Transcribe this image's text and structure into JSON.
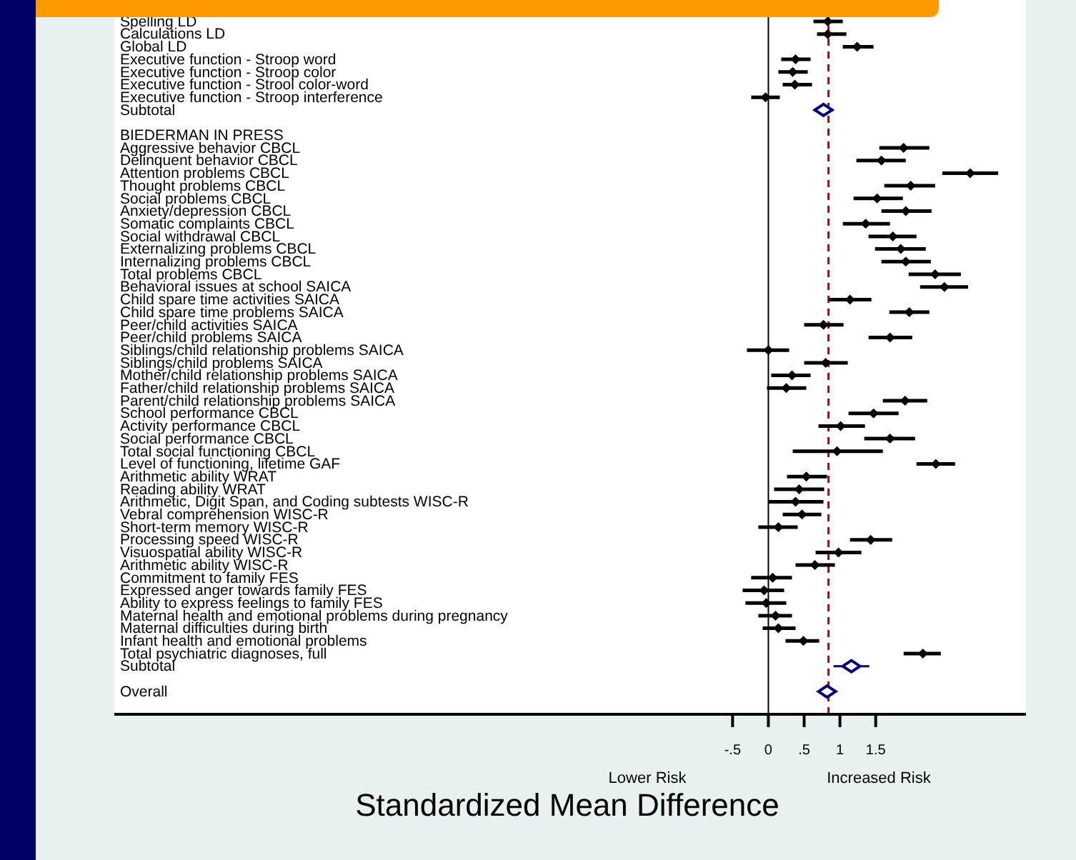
{
  "chart_data": {
    "type": "scatter",
    "orientation": "horizontal",
    "xlabel": "Standardized Mean Difference",
    "categories": [
      "Spelling LD",
      "Calculations LD",
      "Global LD",
      "Executive function - Stroop word",
      "Executive function - Stroop color",
      "Executive function - Strool color-word",
      "Executive function - Stroop interference",
      "Subtotal",
      null,
      "BIEDERMAN IN PRESS",
      "Aggressive behavior CBCL",
      "Delinquent behavior CBCL",
      "Attention problems CBCL",
      "Thought problems CBCL",
      "Social problems CBCL",
      "Anxiety/depression CBCL",
      "Somatic complaints CBCL",
      "Social withdrawal CBCL",
      "Externalizing problems CBCL",
      "Internalizing problems CBCL",
      "Total problems CBCL",
      "Behavioral issues at school SAICA",
      "Child spare time activities SAICA",
      "Child spare time problems SAICA",
      "Peer/child activities SAICA",
      "Peer/child problems SAICA",
      "Siblings/child relationship problems SAICA",
      "Siblings/child problems SAICA",
      "Mother/child relationship problems SAICA",
      "Father/child relationship problems SAICA",
      "Parent/child relationship problems SAICA",
      "School performance CBCL",
      "Activity performance CBCL",
      "Social performance CBCL",
      "Total social functioning CBCL",
      "Level of functioning, lifetime GAF",
      "Arithmetic ability WRAT",
      "Reading ability WRAT",
      "Arithmetic, Digit Span, and Coding subtests WISC-R",
      "Vebral comprehension WISC-R",
      "Short-term memory WISC-R",
      "Processing speed WISC-R",
      "Visuospatial ability WISC-R",
      "Arithmetic ability WISC-R",
      "Commitment to family FES",
      "Expressed anger towards family FES",
      "Ability to express feelings to family FES",
      "Maternal health and emotional problems during pregnancy",
      "Maternal difficulties during birth",
      "Infant health and emotional problems",
      "Total psychiatric diagnoses, full",
      "Subtotal",
      null,
      "Overall"
    ],
    "series": [
      {
        "color": "#000000",
        "values": [
          0.83,
          0.83,
          1.24,
          0.38,
          0.34,
          0.37,
          -0.04,
          null,
          null,
          null,
          1.89,
          1.58,
          2.82,
          1.99,
          1.52,
          1.92,
          1.36,
          1.74,
          1.85,
          1.92,
          2.33,
          2.46,
          1.14,
          1.97,
          0.77,
          1.7,
          0.0,
          0.8,
          0.33,
          0.25,
          1.91,
          1.47,
          1.01,
          1.7,
          0.96,
          2.34,
          0.53,
          0.43,
          0.38,
          0.47,
          0.14,
          1.43,
          0.98,
          0.65,
          0.06,
          -0.06,
          -0.03,
          0.1,
          0.14,
          0.49,
          2.16,
          null,
          null,
          null
        ],
        "errors": [
          [
            0.63,
            1.04
          ],
          [
            0.68,
            1.09
          ],
          [
            1.04,
            1.47
          ],
          [
            0.18,
            0.59
          ],
          [
            0.14,
            0.55
          ],
          [
            0.2,
            0.61
          ],
          [
            -0.24,
            0.16
          ],
          null,
          null,
          null,
          [
            1.55,
            2.25
          ],
          [
            1.23,
            1.92
          ],
          [
            2.43,
            3.21
          ],
          [
            1.62,
            2.33
          ],
          [
            1.19,
            1.88
          ],
          [
            1.58,
            2.28
          ],
          [
            1.04,
            1.7
          ],
          [
            1.4,
            2.07
          ],
          [
            1.49,
            2.2
          ],
          [
            1.58,
            2.27
          ],
          [
            1.96,
            2.69
          ],
          [
            2.12,
            2.79
          ],
          [
            0.85,
            1.44
          ],
          [
            1.69,
            2.25
          ],
          [
            0.5,
            1.05
          ],
          [
            1.4,
            2.01
          ],
          [
            -0.3,
            0.29
          ],
          [
            0.5,
            1.11
          ],
          [
            0.04,
            0.59
          ],
          [
            -0.02,
            0.53
          ],
          [
            1.6,
            2.22
          ],
          [
            1.12,
            1.82
          ],
          [
            0.7,
            1.35
          ],
          [
            1.34,
            2.05
          ],
          [
            0.34,
            1.6
          ],
          [
            2.07,
            2.61
          ],
          [
            0.26,
            0.82
          ],
          [
            0.08,
            0.78
          ],
          [
            0.0,
            0.77
          ],
          [
            0.2,
            0.74
          ],
          [
            -0.14,
            0.41
          ],
          [
            1.14,
            1.73
          ],
          [
            0.66,
            1.3
          ],
          [
            0.38,
            0.93
          ],
          [
            -0.24,
            0.33
          ],
          [
            -0.36,
            0.22
          ],
          [
            -0.32,
            0.25
          ],
          [
            -0.14,
            0.33
          ],
          [
            -0.08,
            0.38
          ],
          [
            0.24,
            0.71
          ],
          [
            1.89,
            2.41
          ],
          null,
          null,
          null
        ]
      },
      {
        "color": "#000080",
        "values": [
          null,
          null,
          null,
          null,
          null,
          null,
          null,
          0.77,
          null,
          null,
          null,
          null,
          null,
          null,
          null,
          null,
          null,
          null,
          null,
          null,
          null,
          null,
          null,
          null,
          null,
          null,
          null,
          null,
          null,
          null,
          null,
          null,
          null,
          null,
          null,
          null,
          null,
          null,
          null,
          null,
          null,
          null,
          null,
          null,
          null,
          null,
          null,
          null,
          null,
          null,
          null,
          1.16,
          null,
          0.82
        ],
        "errors": [
          null,
          null,
          null,
          null,
          null,
          null,
          null,
          [
            0.64,
            0.91
          ],
          null,
          null,
          null,
          null,
          null,
          null,
          null,
          null,
          null,
          null,
          null,
          null,
          null,
          null,
          null,
          null,
          null,
          null,
          null,
          null,
          null,
          null,
          null,
          null,
          null,
          null,
          null,
          null,
          null,
          null,
          null,
          null,
          null,
          null,
          null,
          null,
          null,
          null,
          null,
          null,
          null,
          null,
          null,
          [
            0.91,
            1.41
          ],
          null,
          [
            0.72,
            0.94
          ]
        ]
      }
    ],
    "marker": "diamond",
    "xlim": [
      -9.14,
      3.6
    ],
    "xticks": [
      {
        "value": -0.5,
        "label": "-.5"
      },
      0,
      {
        "value": 0.5,
        "label": ".5"
      },
      1,
      1.5
    ],
    "ref_lines": [
      {
        "axis": "x",
        "value": 0,
        "color": "#000000",
        "line_style": "solid"
      },
      {
        "axis": "x",
        "value": 0.84,
        "color": "#8b1a1a",
        "line_style": "dashed"
      }
    ],
    "annotations": [
      "Lower Risk",
      "Increased Risk"
    ],
    "grid": false
  }
}
